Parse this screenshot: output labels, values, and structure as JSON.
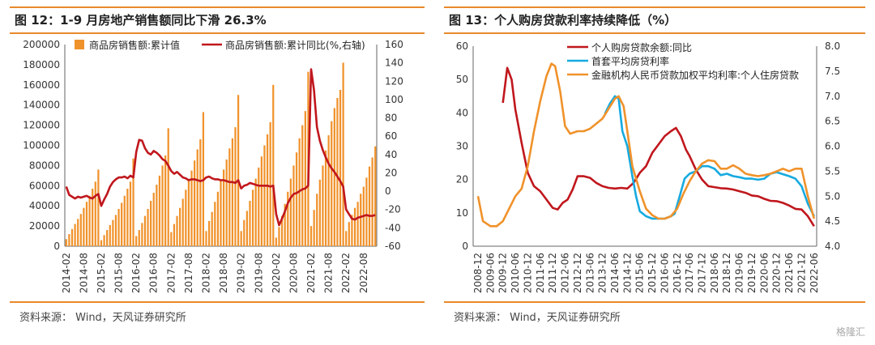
{
  "left": {
    "title": "图 12：1-9 月房地产销售额同比下滑 26.3%",
    "source": "资料来源： Wind，天风证券研究所",
    "chart_data": {
      "type": "bar",
      "x_labels": [
        "2014-02",
        "2014-08",
        "2015-02",
        "2015-08",
        "2016-02",
        "2016-08",
        "2017-02",
        "2017-08",
        "2018-02",
        "2018-08",
        "2019-02",
        "2019-08",
        "2020-02",
        "2020-08",
        "2021-02",
        "2021-08",
        "2022-02",
        "2022-08"
      ],
      "left_axis": {
        "min": 0,
        "max": 200000,
        "ticks": [
          0,
          20000,
          40000,
          60000,
          80000,
          100000,
          120000,
          140000,
          160000,
          180000,
          200000
        ]
      },
      "right_axis": {
        "min": -60,
        "max": 160,
        "ticks": [
          -60,
          -40,
          -20,
          0,
          20,
          40,
          60,
          80,
          100,
          120,
          140,
          160
        ]
      },
      "series": [
        {
          "name": "商品房销售额:累计值",
          "color": "#F0922B",
          "axis": "left",
          "values": [
            7000,
            12000,
            17000,
            22000,
            27000,
            32000,
            38000,
            44000,
            50000,
            57000,
            64000,
            76000,
            6000,
            11000,
            16000,
            21000,
            26000,
            31000,
            37000,
            43000,
            50000,
            57000,
            64000,
            87000,
            10000,
            16000,
            23000,
            30000,
            37000,
            45000,
            53000,
            61000,
            70000,
            80000,
            90000,
            117000,
            14000,
            22000,
            30000,
            38000,
            47000,
            56000,
            66000,
            75000,
            85000,
            96000,
            106000,
            133000,
            15000,
            25000,
            34000,
            44000,
            54000,
            65000,
            76000,
            86000,
            97000,
            107000,
            118000,
            150000,
            15000,
            26000,
            35000,
            45000,
            56000,
            67000,
            78000,
            89000,
            100000,
            111000,
            123000,
            160000,
            8500,
            19000,
            30000,
            42000,
            54000,
            67000,
            80000,
            93000,
            107000,
            120000,
            134000,
            173000,
            20000,
            36000,
            52000,
            66000,
            80000,
            95000,
            110000,
            124000,
            137000,
            147000,
            155000,
            182000,
            15000,
            24000,
            31000,
            38000,
            44000,
            52000,
            59000,
            68000,
            79000,
            88000,
            99000
          ]
        },
        {
          "name": "商品房销售额:累计同比(%,右轴)",
          "color": "#C0171D",
          "axis": "right",
          "values": [
            5,
            -4,
            -6,
            -8,
            -6,
            -7,
            -6,
            -5,
            -7,
            -8,
            -5,
            -3,
            -16,
            -9,
            -3,
            5,
            10,
            13,
            15,
            15,
            16,
            14,
            17,
            15,
            43,
            56,
            55,
            47,
            42,
            40,
            44,
            42,
            39,
            35,
            33,
            28,
            22,
            19,
            21,
            18,
            15,
            14,
            12,
            13,
            13,
            12,
            11,
            12,
            15,
            16,
            14,
            13,
            13,
            12,
            12,
            11,
            10,
            10,
            9,
            12,
            3,
            6,
            7,
            9,
            8,
            7,
            6,
            6,
            6,
            6,
            5,
            6,
            -25,
            -37,
            -30,
            -22,
            -13,
            -7,
            -3,
            -2,
            0,
            2,
            3,
            6,
            133,
            110,
            70,
            55,
            45,
            37,
            30,
            25,
            21,
            16,
            11,
            5,
            -20,
            -25,
            -30,
            -31,
            -29,
            -28,
            -27,
            -26,
            -27,
            -27,
            -26
          ]
        }
      ]
    }
  },
  "right": {
    "title": "图 13：个人购房贷款利率持续降低（%）",
    "source": "资料来源： Wind，天风证券研究所",
    "watermark": "格隆汇",
    "chart_data": {
      "type": "line",
      "x_labels": [
        "2008-12",
        "2009-06",
        "2009-12",
        "2010-06",
        "2010-12",
        "2011-06",
        "2011-12",
        "2012-06",
        "2012-12",
        "2013-06",
        "2013-12",
        "2014-06",
        "2014-12",
        "2015-06",
        "2015-12",
        "2016-06",
        "2016-12",
        "2017-06",
        "2017-12",
        "2018-06",
        "2018-12",
        "2019-06",
        "2019-12",
        "2020-06",
        "2020-12",
        "2021-06",
        "2021-12",
        "2022-06"
      ],
      "left_axis": {
        "min": 0,
        "max": 60,
        "ticks": [
          0,
          10,
          20,
          30,
          40,
          50,
          60
        ]
      },
      "right_axis": {
        "min": 4.0,
        "max": 8.0,
        "ticks": [
          "4.0",
          "4.5",
          "5.0",
          "5.5",
          "6.0",
          "6.5",
          "7.0",
          "7.5",
          "8.0"
        ]
      },
      "series": [
        {
          "name": "个人购房贷款余额:同比",
          "color": "#C0171D",
          "axis": "left",
          "points": [
            [
              2,
              43
            ],
            [
              2.35,
              53.5
            ],
            [
              2.7,
              50
            ],
            [
              3,
              41
            ],
            [
              3.5,
              31
            ],
            [
              4,
              22
            ],
            [
              4.5,
              18
            ],
            [
              5,
              16.5
            ],
            [
              5.5,
              14
            ],
            [
              6,
              11.5
            ],
            [
              6.4,
              11
            ],
            [
              6.8,
              13
            ],
            [
              7.2,
              14
            ],
            [
              7.6,
              17
            ],
            [
              8,
              21
            ],
            [
              8.5,
              21
            ],
            [
              9,
              20.5
            ],
            [
              9.5,
              19
            ],
            [
              10,
              18
            ],
            [
              10.5,
              17.5
            ],
            [
              11,
              17.3
            ],
            [
              11.5,
              17.5
            ],
            [
              12,
              17.3
            ],
            [
              12.5,
              19
            ],
            [
              13,
              22
            ],
            [
              13.5,
              24
            ],
            [
              14,
              28
            ],
            [
              14.5,
              30.5
            ],
            [
              15,
              33
            ],
            [
              15.5,
              34.5
            ],
            [
              15.9,
              35.5
            ],
            [
              16.3,
              33
            ],
            [
              16.7,
              29
            ],
            [
              17,
              27
            ],
            [
              17.5,
              23
            ],
            [
              18,
              20
            ],
            [
              18.5,
              18
            ],
            [
              19,
              17.7
            ],
            [
              19.5,
              17.4
            ],
            [
              20,
              17.3
            ],
            [
              20.5,
              17
            ],
            [
              21,
              16.5
            ],
            [
              21.5,
              16
            ],
            [
              22,
              15.2
            ],
            [
              22.5,
              15
            ],
            [
              23,
              14.2
            ],
            [
              23.5,
              13.6
            ],
            [
              24,
              13.5
            ],
            [
              24.5,
              13
            ],
            [
              25,
              12.2
            ],
            [
              25.5,
              11.2
            ],
            [
              26,
              11
            ],
            [
              26.5,
              9
            ],
            [
              27,
              6
            ]
          ]
        },
        {
          "name": "首套平均房贷利率",
          "color": "#16AAE0",
          "axis": "right",
          "points": [
            [
              10.2,
              6.65
            ],
            [
              10.6,
              6.85
            ],
            [
              11,
              7
            ],
            [
              11.3,
              6.95
            ],
            [
              11.6,
              6.3
            ],
            [
              12,
              6
            ],
            [
              12.4,
              5.4
            ],
            [
              12.7,
              5
            ],
            [
              13,
              4.7
            ],
            [
              13.5,
              4.6
            ],
            [
              14,
              4.55
            ],
            [
              14.5,
              4.55
            ],
            [
              15,
              4.55
            ],
            [
              15.5,
              4.6
            ],
            [
              15.8,
              4.65
            ],
            [
              16.2,
              5
            ],
            [
              16.6,
              5.35
            ],
            [
              17,
              5.45
            ],
            [
              17.5,
              5.5
            ],
            [
              18,
              5.6
            ],
            [
              18.5,
              5.6
            ],
            [
              19,
              5.55
            ],
            [
              19.5,
              5.42
            ],
            [
              20,
              5.45
            ],
            [
              20.5,
              5.4
            ],
            [
              21,
              5.38
            ],
            [
              21.5,
              5.35
            ],
            [
              22,
              5.35
            ],
            [
              22.5,
              5.33
            ],
            [
              23,
              5.35
            ],
            [
              23.5,
              5.45
            ],
            [
              24,
              5.48
            ],
            [
              24.5,
              5.44
            ],
            [
              25,
              5.4
            ],
            [
              25.5,
              5.35
            ],
            [
              26,
              5.2
            ],
            [
              26.5,
              4.85
            ],
            [
              27,
              4.6
            ]
          ]
        },
        {
          "name": "金融机构人民币贷款加权平均利率:个人住房贷款",
          "color": "#F0922B",
          "axis": "right",
          "points": [
            [
              0,
              5
            ],
            [
              0.4,
              4.5
            ],
            [
              1,
              4.4
            ],
            [
              1.5,
              4.4
            ],
            [
              2,
              4.5
            ],
            [
              2.5,
              4.75
            ],
            [
              3,
              5
            ],
            [
              3.5,
              5.15
            ],
            [
              4,
              5.6
            ],
            [
              4.5,
              6.3
            ],
            [
              5,
              6.9
            ],
            [
              5.5,
              7.4
            ],
            [
              5.9,
              7.65
            ],
            [
              6.2,
              7.6
            ],
            [
              6.6,
              7.1
            ],
            [
              7,
              6.4
            ],
            [
              7.4,
              6.25
            ],
            [
              8,
              6.3
            ],
            [
              8.5,
              6.3
            ],
            [
              9,
              6.35
            ],
            [
              9.5,
              6.45
            ],
            [
              10,
              6.55
            ],
            [
              10.5,
              6.75
            ],
            [
              11,
              6.95
            ],
            [
              11.3,
              7
            ],
            [
              11.7,
              6.8
            ],
            [
              12,
              6.3
            ],
            [
              12.4,
              5.6
            ],
            [
              13,
              5.1
            ],
            [
              13.5,
              4.75
            ],
            [
              14,
              4.62
            ],
            [
              14.5,
              4.55
            ],
            [
              15,
              4.55
            ],
            [
              15.5,
              4.6
            ],
            [
              16,
              4.75
            ],
            [
              16.5,
              5.05
            ],
            [
              17,
              5.3
            ],
            [
              17.5,
              5.5
            ],
            [
              18,
              5.65
            ],
            [
              18.5,
              5.72
            ],
            [
              19,
              5.7
            ],
            [
              19.5,
              5.55
            ],
            [
              20,
              5.55
            ],
            [
              20.5,
              5.62
            ],
            [
              21,
              5.55
            ],
            [
              21.5,
              5.45
            ],
            [
              22,
              5.42
            ],
            [
              22.5,
              5.4
            ],
            [
              23,
              5.42
            ],
            [
              23.5,
              5.45
            ],
            [
              24,
              5.5
            ],
            [
              24.5,
              5.55
            ],
            [
              25,
              5.5
            ],
            [
              25.5,
              5.55
            ],
            [
              26,
              5.55
            ],
            [
              26.5,
              5.0
            ],
            [
              27,
              4.55
            ]
          ]
        }
      ]
    }
  }
}
